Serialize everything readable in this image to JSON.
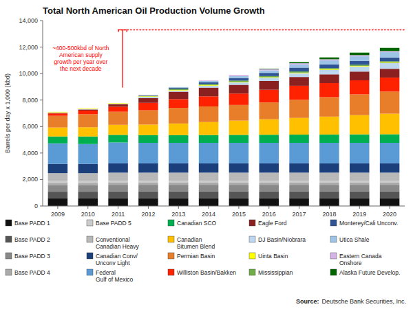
{
  "chart_data": {
    "type": "bar",
    "stacked": true,
    "grid": false,
    "legend": "bottom",
    "title": "Total North American Oil Production Volume Growth",
    "ylabel": "Barrels per day x 1,000 (kbd)",
    "source_label": "Source:",
    "source_text": "Deutsche Bank Securities, Inc.",
    "annotation": "~400-500kbd of North\nAmerican supply\ngrowth per year over\nthe next decade",
    "reference_line": {
      "y": 13300,
      "start": "2011"
    },
    "bracket": {
      "category": "2011",
      "from": 8950,
      "to": 13300
    },
    "categories": [
      "2009",
      "2010",
      "2011",
      "2012",
      "2013",
      "2014",
      "2015",
      "2016",
      "2017",
      "2018",
      "2019",
      "2020"
    ],
    "ylim": [
      0,
      14000
    ],
    "yticks": [
      0,
      {
        "value": 2000,
        "label": "2,000"
      },
      {
        "value": 4000,
        "label": "4,000"
      },
      {
        "value": 6000,
        "label": "6,000"
      },
      {
        "value": 8000,
        "label": "8,000"
      },
      {
        "value": 10000,
        "label": "10,000"
      },
      {
        "value": 12000,
        "label": "12,000"
      },
      {
        "value": 14000,
        "label": "14,000"
      }
    ],
    "series": [
      {
        "name": "Base PADD 1",
        "color": "#111111",
        "values": [
          580,
          580,
          590,
          590,
          590,
          590,
          590,
          590,
          590,
          590,
          590,
          590
        ]
      },
      {
        "name": "Base PADD 2",
        "color": "#555555",
        "values": [
          500,
          500,
          520,
          520,
          520,
          520,
          520,
          520,
          520,
          520,
          520,
          520
        ]
      },
      {
        "name": "Base PADD 3",
        "color": "#888888",
        "values": [
          480,
          480,
          490,
          490,
          490,
          490,
          490,
          490,
          490,
          490,
          490,
          490
        ]
      },
      {
        "name": "Base PADD 4",
        "color": "#aaaaaa",
        "values": [
          190,
          190,
          190,
          190,
          190,
          190,
          190,
          190,
          190,
          190,
          190,
          190
        ]
      },
      {
        "name": "Base PADD 5",
        "color": "#cccccc",
        "values": [
          130,
          130,
          130,
          130,
          130,
          130,
          130,
          130,
          130,
          130,
          130,
          130
        ]
      },
      {
        "name": "Conventional\nCanadian Heavy",
        "color": "#b8b8b8",
        "values": [
          600,
          600,
          600,
          600,
          600,
          600,
          600,
          600,
          600,
          600,
          600,
          600
        ]
      },
      {
        "name": "Canadian Conv/\nUnconv Light",
        "color": "#1a3f7a",
        "values": [
          700,
          700,
          700,
          700,
          700,
          700,
          700,
          700,
          700,
          700,
          700,
          700
        ]
      },
      {
        "name": "Federal\nGulf of Mexico",
        "color": "#5b9bd5",
        "values": [
          1550,
          1500,
          1580,
          1550,
          1550,
          1550,
          1550,
          1550,
          1550,
          1550,
          1550,
          1550
        ]
      },
      {
        "name": "Canadian SCO",
        "color": "#00b050",
        "values": [
          520,
          570,
          570,
          580,
          580,
          590,
          600,
          610,
          620,
          630,
          640,
          650
        ]
      },
      {
        "name": "Canadian\nBitumen Blend",
        "color": "#ffc000",
        "values": [
          680,
          700,
          760,
          800,
          880,
          980,
          1080,
          1170,
          1260,
          1350,
          1450,
          1550
        ]
      },
      {
        "name": "Permian Basin",
        "color": "#e87d2a",
        "values": [
          880,
          980,
          990,
          1080,
          1180,
          1180,
          1180,
          1270,
          1370,
          1470,
          1570,
          1670
        ]
      },
      {
        "name": "Williston Basin/Bakken",
        "color": "#ff2200",
        "values": [
          180,
          280,
          380,
          560,
          660,
          760,
          860,
          960,
          1060,
          1060,
          1060,
          1060
        ]
      },
      {
        "name": "Eagle Ford",
        "color": "#8b2020",
        "values": [
          40,
          80,
          180,
          360,
          560,
          660,
          660,
          660,
          660,
          660,
          660,
          660
        ]
      },
      {
        "name": "DJ Basin/Niobrara",
        "color": "#bdd7ee",
        "values": [
          40,
          40,
          40,
          90,
          90,
          140,
          190,
          240,
          290,
          340,
          390,
          440
        ]
      },
      {
        "name": "Uinta Basin",
        "color": "#ffff00",
        "values": [
          40,
          40,
          40,
          40,
          40,
          40,
          40,
          40,
          40,
          40,
          40,
          40
        ]
      },
      {
        "name": "Mississippian",
        "color": "#70ad47",
        "values": [
          0,
          0,
          0,
          40,
          90,
          90,
          90,
          90,
          90,
          90,
          90,
          90
        ]
      },
      {
        "name": "Monterey/Cali Unconv.",
        "color": "#2f5496",
        "values": [
          0,
          0,
          0,
          40,
          90,
          140,
          190,
          240,
          290,
          290,
          290,
          290
        ]
      },
      {
        "name": "Utica Shale",
        "color": "#9dc3e6",
        "values": [
          0,
          0,
          0,
          0,
          40,
          90,
          140,
          190,
          240,
          290,
          340,
          390
        ]
      },
      {
        "name": "Eastern Canada\nOnshore",
        "color": "#d5b3e6",
        "values": [
          0,
          0,
          0,
          0,
          0,
          40,
          90,
          90,
          90,
          90,
          90,
          90
        ]
      },
      {
        "name": "Alaska Future Develop.",
        "color": "#006600",
        "values": [
          0,
          0,
          0,
          0,
          0,
          0,
          0,
          40,
          90,
          140,
          190,
          240
        ]
      }
    ]
  }
}
